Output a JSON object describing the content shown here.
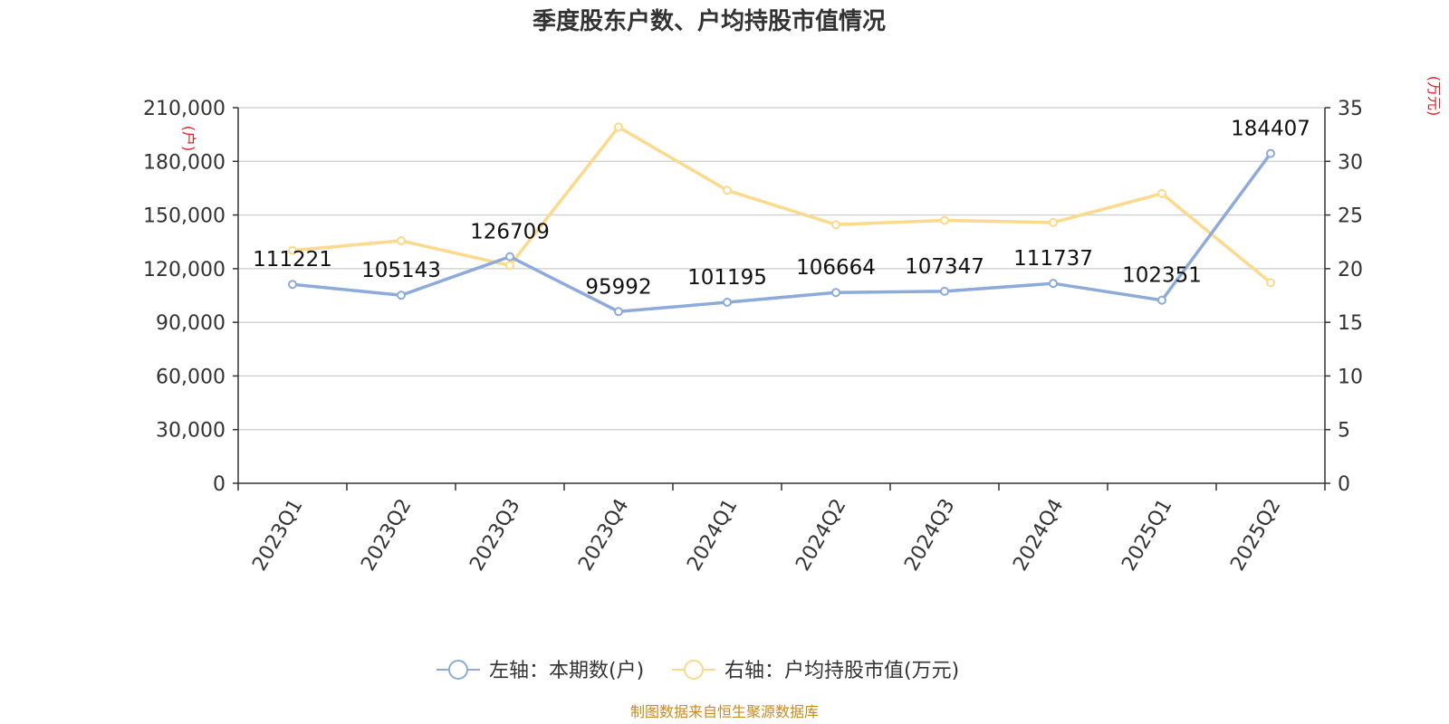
{
  "chart_data": {
    "type": "line",
    "title": "季度股东户数、户均持股市值情况",
    "categories": [
      "2023Q1",
      "2023Q2",
      "2023Q3",
      "2023Q4",
      "2024Q1",
      "2024Q2",
      "2024Q3",
      "2024Q4",
      "2025Q1",
      "2025Q2"
    ],
    "series": [
      {
        "name": "左轴：本期数(户)",
        "axis": "left",
        "color": "#8eaadb",
        "values": [
          111221,
          105143,
          126709,
          95992,
          101195,
          106664,
          107347,
          111737,
          102351,
          184407
        ],
        "data_labels": [
          "111221",
          "105143",
          "126709",
          "95992",
          "101195",
          "106664",
          "107347",
          "111737",
          "102351",
          "184407"
        ]
      },
      {
        "name": "右轴：户均持股市值(万元)",
        "axis": "right",
        "color": "#fbd98d",
        "values": [
          21.7,
          22.6,
          20.3,
          33.2,
          27.3,
          24.1,
          24.5,
          24.3,
          27.0,
          18.7
        ]
      }
    ],
    "left_axis": {
      "unit": "(户)",
      "ylim": [
        0,
        210000
      ],
      "ticks": [
        0,
        30000,
        60000,
        90000,
        120000,
        150000,
        180000,
        210000
      ],
      "tick_labels": [
        "0",
        "30,000",
        "60,000",
        "90,000",
        "120,000",
        "150,000",
        "180,000",
        "210,000"
      ]
    },
    "right_axis": {
      "unit": "(万元)",
      "ylim": [
        0,
        35
      ],
      "ticks": [
        0,
        5,
        10,
        15,
        20,
        25,
        30,
        35
      ],
      "tick_labels": [
        "0",
        "5",
        "10",
        "15",
        "20",
        "25",
        "30",
        "35"
      ]
    },
    "grid": true,
    "legend_position": "bottom-center",
    "unit_color": "#e02020"
  },
  "source_text": "制图数据来自恒生聚源数据库",
  "source_color": "#c98a1e"
}
